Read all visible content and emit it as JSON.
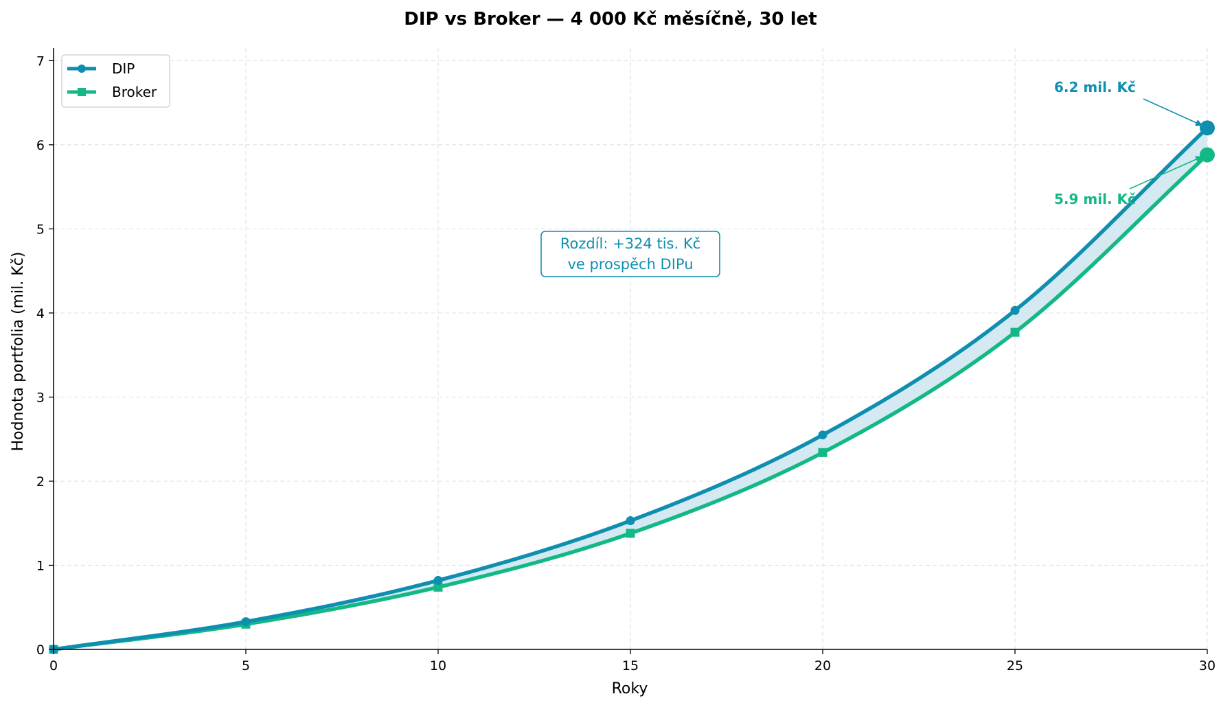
{
  "chart_data": {
    "type": "line",
    "title": "DIP vs Broker — 4 000 Kč měsíčně, 30 let",
    "xlabel": "Roky",
    "ylabel": "Hodnota portfolia (mil. Kč)",
    "xlim": [
      0,
      30
    ],
    "ylim": [
      0,
      7.15
    ],
    "xticks": [
      0,
      5,
      10,
      15,
      20,
      25,
      30
    ],
    "yticks": [
      0,
      1,
      2,
      3,
      4,
      5,
      6,
      7
    ],
    "grid": true,
    "legend_position": "top-left",
    "x": [
      0,
      5,
      10,
      15,
      20,
      25,
      30
    ],
    "series": [
      {
        "name": "DIP",
        "color": "#0f8fb0",
        "marker": "circle",
        "values": [
          0,
          0.33,
          0.82,
          1.53,
          2.55,
          4.03,
          6.2
        ]
      },
      {
        "name": "Broker",
        "color": "#13b886",
        "marker": "square",
        "values": [
          0,
          0.3,
          0.74,
          1.38,
          2.34,
          3.77,
          5.88
        ]
      }
    ],
    "fill_between_color": "#cfe7f0",
    "annotations": {
      "dip_end": "6.2 mil. Kč",
      "broker_end": "5.9 mil. Kč",
      "difference_line1": "Rozdíl: +324 tis. Kč",
      "difference_line2": "ve prospěch DIPu"
    }
  }
}
